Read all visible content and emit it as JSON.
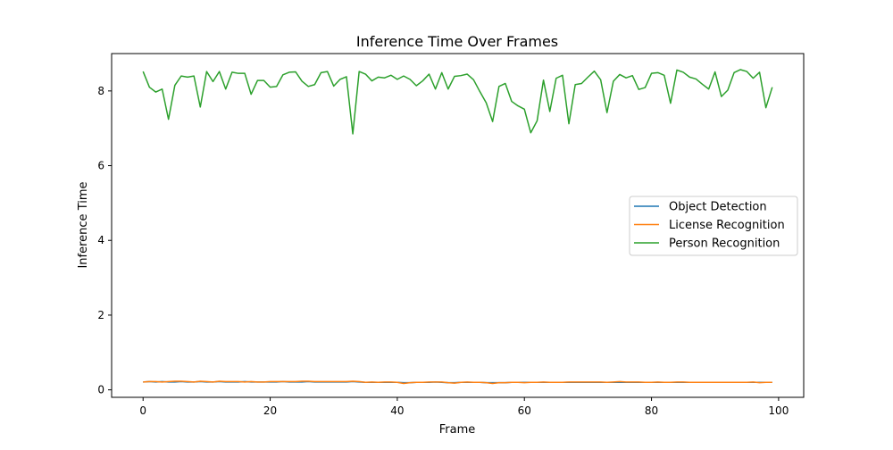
{
  "chart_data": {
    "type": "line",
    "title": "Inference Time Over Frames",
    "xlabel": "Frame",
    "ylabel": "Inference Time",
    "xlim": [
      -4.95,
      103.95
    ],
    "ylim": [
      -0.2,
      9.0
    ],
    "xticks": [
      0,
      20,
      40,
      60,
      80,
      100
    ],
    "yticks": [
      0,
      2,
      4,
      6,
      8
    ],
    "grid": false,
    "legend_position": "center-right",
    "x": [
      0,
      1,
      2,
      3,
      4,
      5,
      6,
      7,
      8,
      9,
      10,
      11,
      12,
      13,
      14,
      15,
      16,
      17,
      18,
      19,
      20,
      21,
      22,
      23,
      24,
      25,
      26,
      27,
      28,
      29,
      30,
      31,
      32,
      33,
      34,
      35,
      36,
      37,
      38,
      39,
      40,
      41,
      42,
      43,
      44,
      45,
      46,
      47,
      48,
      49,
      50,
      51,
      52,
      53,
      54,
      55,
      56,
      57,
      58,
      59,
      60,
      61,
      62,
      63,
      64,
      65,
      66,
      67,
      68,
      69,
      70,
      71,
      72,
      73,
      74,
      75,
      76,
      77,
      78,
      79,
      80,
      81,
      82,
      83,
      84,
      85,
      86,
      87,
      88,
      89,
      90,
      91,
      92,
      93,
      94,
      95,
      96,
      97,
      98,
      99
    ],
    "series": [
      {
        "name": "Object Detection",
        "color": "#1f77b4",
        "values": [
          0.21,
          0.22,
          0.21,
          0.22,
          0.21,
          0.21,
          0.22,
          0.21,
          0.21,
          0.22,
          0.21,
          0.21,
          0.22,
          0.21,
          0.21,
          0.21,
          0.22,
          0.21,
          0.21,
          0.21,
          0.21,
          0.21,
          0.22,
          0.21,
          0.21,
          0.21,
          0.22,
          0.21,
          0.21,
          0.21,
          0.21,
          0.21,
          0.21,
          0.22,
          0.21,
          0.2,
          0.2,
          0.2,
          0.2,
          0.2,
          0.2,
          0.19,
          0.19,
          0.2,
          0.2,
          0.2,
          0.21,
          0.2,
          0.19,
          0.19,
          0.2,
          0.2,
          0.2,
          0.2,
          0.19,
          0.19,
          0.19,
          0.19,
          0.2,
          0.2,
          0.2,
          0.2,
          0.2,
          0.2,
          0.2,
          0.2,
          0.2,
          0.2,
          0.2,
          0.2,
          0.2,
          0.2,
          0.2,
          0.2,
          0.2,
          0.2,
          0.2,
          0.2,
          0.2,
          0.2,
          0.2,
          0.2,
          0.2,
          0.2,
          0.2,
          0.2,
          0.2,
          0.2,
          0.2,
          0.2,
          0.2,
          0.2,
          0.2,
          0.2,
          0.2,
          0.2,
          0.2,
          0.2,
          0.2,
          0.2
        ]
      },
      {
        "name": "License Recognition",
        "color": "#ff7f0e",
        "values": [
          0.21,
          0.22,
          0.22,
          0.21,
          0.22,
          0.23,
          0.23,
          0.22,
          0.21,
          0.23,
          0.22,
          0.21,
          0.23,
          0.22,
          0.22,
          0.22,
          0.21,
          0.22,
          0.21,
          0.21,
          0.22,
          0.22,
          0.22,
          0.22,
          0.22,
          0.23,
          0.23,
          0.22,
          0.22,
          0.22,
          0.22,
          0.22,
          0.22,
          0.23,
          0.22,
          0.2,
          0.21,
          0.2,
          0.21,
          0.21,
          0.2,
          0.17,
          0.19,
          0.2,
          0.2,
          0.21,
          0.21,
          0.21,
          0.19,
          0.18,
          0.2,
          0.21,
          0.2,
          0.2,
          0.19,
          0.17,
          0.19,
          0.19,
          0.2,
          0.2,
          0.19,
          0.2,
          0.2,
          0.21,
          0.2,
          0.2,
          0.2,
          0.21,
          0.21,
          0.21,
          0.21,
          0.21,
          0.21,
          0.2,
          0.21,
          0.22,
          0.21,
          0.21,
          0.21,
          0.2,
          0.2,
          0.21,
          0.2,
          0.2,
          0.21,
          0.21,
          0.2,
          0.2,
          0.2,
          0.2,
          0.2,
          0.2,
          0.2,
          0.2,
          0.2,
          0.2,
          0.21,
          0.19,
          0.2,
          0.2
        ]
      },
      {
        "name": "Person Recognition",
        "color": "#2ca02c",
        "values": [
          8.52,
          8.1,
          7.97,
          8.05,
          7.24,
          8.15,
          8.4,
          8.37,
          8.4,
          7.57,
          8.52,
          8.25,
          8.52,
          8.05,
          8.5,
          8.47,
          8.47,
          7.91,
          8.28,
          8.28,
          8.1,
          8.12,
          8.43,
          8.5,
          8.51,
          8.26,
          8.12,
          8.17,
          8.49,
          8.52,
          8.13,
          8.31,
          8.38,
          6.85,
          8.52,
          8.45,
          8.27,
          8.37,
          8.35,
          8.42,
          8.31,
          8.4,
          8.31,
          8.14,
          8.27,
          8.45,
          8.05,
          8.49,
          8.05,
          8.39,
          8.41,
          8.45,
          8.3,
          7.98,
          7.68,
          7.18,
          8.12,
          8.2,
          7.72,
          7.6,
          7.51,
          6.88,
          7.2,
          8.29,
          7.45,
          8.34,
          8.42,
          7.12,
          8.17,
          8.2,
          8.37,
          8.53,
          8.3,
          7.42,
          8.26,
          8.44,
          8.35,
          8.41,
          8.04,
          8.09,
          8.47,
          8.49,
          8.42,
          7.67,
          8.56,
          8.5,
          8.37,
          8.32,
          8.18,
          8.05,
          8.51,
          7.85,
          8.02,
          8.49,
          8.57,
          8.52,
          8.34,
          8.5,
          7.55,
          8.1
        ]
      }
    ]
  }
}
